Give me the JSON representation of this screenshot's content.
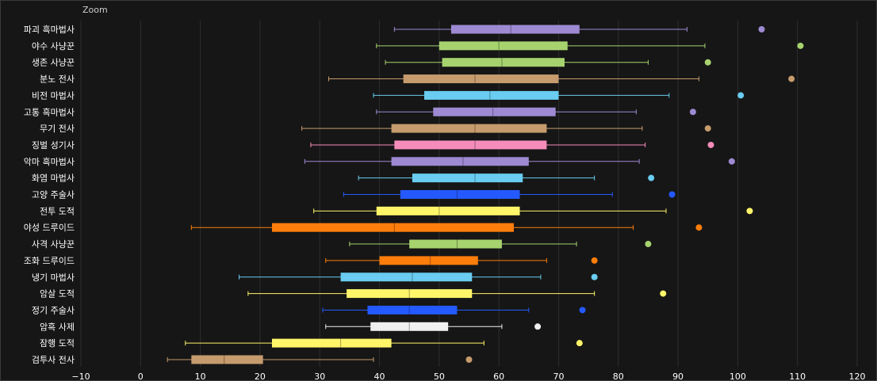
{
  "zoom_label": "Zoom",
  "chart_data": {
    "type": "boxplot",
    "xlim": [
      -10,
      120
    ],
    "x_ticks": [
      -10,
      0,
      10,
      20,
      30,
      40,
      50,
      60,
      70,
      80,
      90,
      100,
      110,
      120
    ],
    "grid": "vertical",
    "categories": [
      {
        "label": "파괴 흑마법사",
        "min": 42.5,
        "q1": 52,
        "median": 62,
        "q3": 73.5,
        "max": 91.5,
        "outlier": 104,
        "color": "#9e8ad3"
      },
      {
        "label": "야수 사냥꾼",
        "min": 39.5,
        "q1": 50,
        "median": 60,
        "q3": 71.5,
        "max": 94.5,
        "outlier": 110.5,
        "color": "#a7d36f"
      },
      {
        "label": "생존 사냥꾼",
        "min": 41,
        "q1": 50.5,
        "median": 60.5,
        "q3": 71,
        "max": 85,
        "outlier": 95,
        "color": "#a7d36f"
      },
      {
        "label": "분노 전사",
        "min": 31.5,
        "q1": 44,
        "median": 56,
        "q3": 70,
        "max": 93.5,
        "outlier": 109,
        "color": "#c69b6d"
      },
      {
        "label": "비전 마법사",
        "min": 39,
        "q1": 47.5,
        "median": 58.5,
        "q3": 70,
        "max": 88.5,
        "outlier": 100.5,
        "color": "#69ccf0"
      },
      {
        "label": "고통 흑마법사",
        "min": 39.5,
        "q1": 49,
        "median": 59,
        "q3": 69.5,
        "max": 83,
        "outlier": 92.5,
        "color": "#9e8ad3"
      },
      {
        "label": "무기 전사",
        "min": 27,
        "q1": 42,
        "median": 56,
        "q3": 68,
        "max": 84,
        "outlier": 95,
        "color": "#c69b6d"
      },
      {
        "label": "징벌 성기사",
        "min": 28.5,
        "q1": 42.5,
        "median": 56,
        "q3": 68,
        "max": 84.5,
        "outlier": 95.5,
        "color": "#f58cba"
      },
      {
        "label": "악마 흑마법사",
        "min": 27.5,
        "q1": 42,
        "median": 54,
        "q3": 65,
        "max": 83.5,
        "outlier": 99,
        "color": "#9e8ad3"
      },
      {
        "label": "화염 마법사",
        "min": 36.5,
        "q1": 45.5,
        "median": 56,
        "q3": 64,
        "max": 76,
        "outlier": 85.5,
        "color": "#69ccf0"
      },
      {
        "label": "고양 주술사",
        "min": 34,
        "q1": 43.5,
        "median": 53,
        "q3": 63.5,
        "max": 79,
        "outlier": 89,
        "color": "#2459ff"
      },
      {
        "label": "전투 도적",
        "min": 29,
        "q1": 39.5,
        "median": 50,
        "q3": 63.5,
        "max": 88,
        "outlier": 102,
        "color": "#fff569"
      },
      {
        "label": "야성 드루이드",
        "min": 8.5,
        "q1": 22,
        "median": 42.5,
        "q3": 62.5,
        "max": 82.5,
        "outlier": 93.5,
        "color": "#ff7d0a"
      },
      {
        "label": "사격 사냥꾼",
        "min": 35,
        "q1": 45,
        "median": 53,
        "q3": 60.5,
        "max": 73,
        "outlier": 85,
        "color": "#a7d36f"
      },
      {
        "label": "조화 드루이드",
        "min": 31,
        "q1": 40,
        "median": 48.5,
        "q3": 56.5,
        "max": 68,
        "outlier": 76,
        "color": "#ff7d0a"
      },
      {
        "label": "냉기 마법사",
        "min": 16.5,
        "q1": 33.5,
        "median": 45.5,
        "q3": 55.5,
        "max": 67,
        "outlier": 76,
        "color": "#69ccf0"
      },
      {
        "label": "암살 도적",
        "min": 18,
        "q1": 34.5,
        "median": 45,
        "q3": 55.5,
        "max": 76,
        "outlier": 87.5,
        "color": "#fff569"
      },
      {
        "label": "정기 주술사",
        "min": 30.5,
        "q1": 38,
        "median": 45,
        "q3": 53,
        "max": 65,
        "outlier": 74,
        "color": "#2459ff"
      },
      {
        "label": "암흑 사제",
        "min": 31,
        "q1": 38.5,
        "median": 45,
        "q3": 51.5,
        "max": 60.5,
        "outlier": 66.5,
        "color": "#f0f0f0"
      },
      {
        "label": "잠행 도적",
        "min": 7.5,
        "q1": 22,
        "median": 33.5,
        "q3": 42,
        "max": 57.5,
        "outlier": 73.5,
        "color": "#fff569"
      },
      {
        "label": "검투사 전사",
        "min": 4.5,
        "q1": 8.5,
        "median": 14,
        "q3": 20.5,
        "max": 39,
        "outlier": 55,
        "color": "#c69b6d"
      }
    ]
  }
}
